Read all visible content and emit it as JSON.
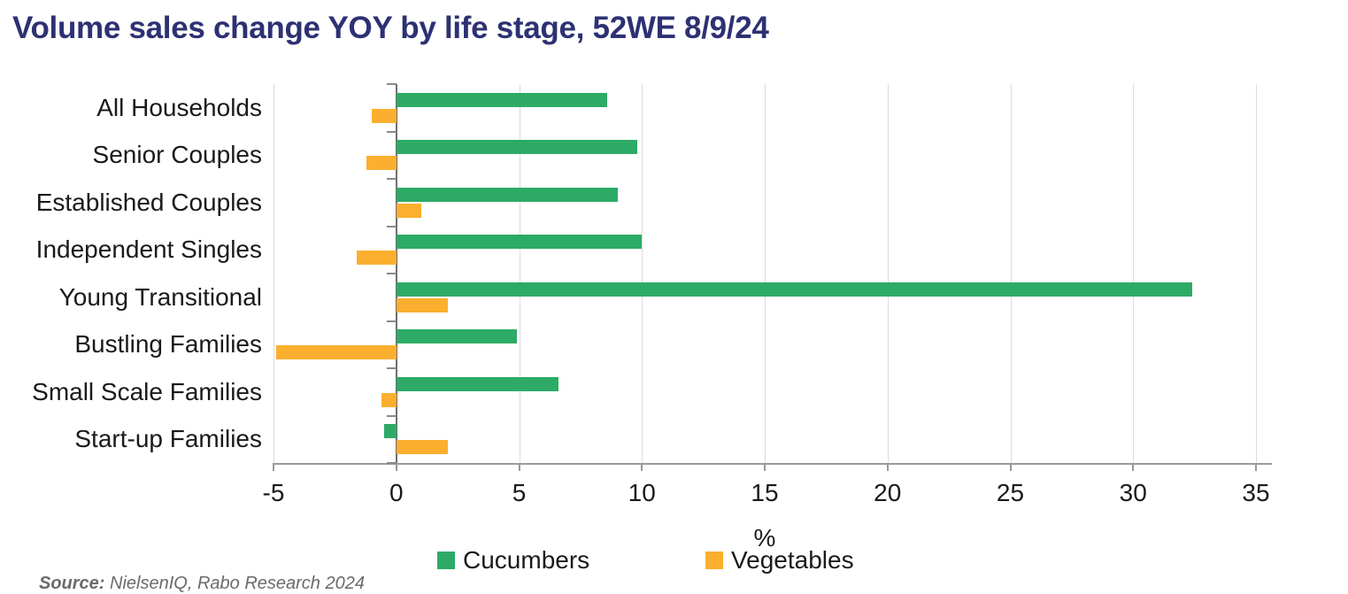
{
  "header": {
    "title": "Volume sales change YOY by life stage, 52WE 8/9/24"
  },
  "chart_data": {
    "type": "bar",
    "orientation": "horizontal",
    "title": "Volume sales change YOY by life stage, 52WE 8/9/24",
    "categories": [
      "All Households",
      "Senior Couples",
      "Established Couples",
      "Independent Singles",
      "Young Transitional",
      "Bustling Families",
      "Small Scale Families",
      "Start-up Families"
    ],
    "series": [
      {
        "name": "Cucumbers",
        "color": "#2dab66",
        "values": [
          8.6,
          9.8,
          9.0,
          10.0,
          32.4,
          4.9,
          6.6,
          -0.5
        ]
      },
      {
        "name": "Vegetables",
        "color": "#fbaf2e",
        "values": [
          -1.0,
          -1.2,
          1.0,
          -1.6,
          2.1,
          -4.9,
          -0.6,
          2.1
        ]
      }
    ],
    "xlabel": "%",
    "xlim": [
      -5,
      35
    ],
    "xticks": [
      -5,
      0,
      5,
      10,
      15,
      20,
      25,
      30,
      35
    ],
    "grid": true,
    "legend_position": "bottom"
  },
  "footer": {
    "source": "Source: NielsenIQ, Rabo Research 2024",
    "source_prefix": "Source:",
    "source_rest": " NielsenIQ, Rabo Research 2024"
  }
}
